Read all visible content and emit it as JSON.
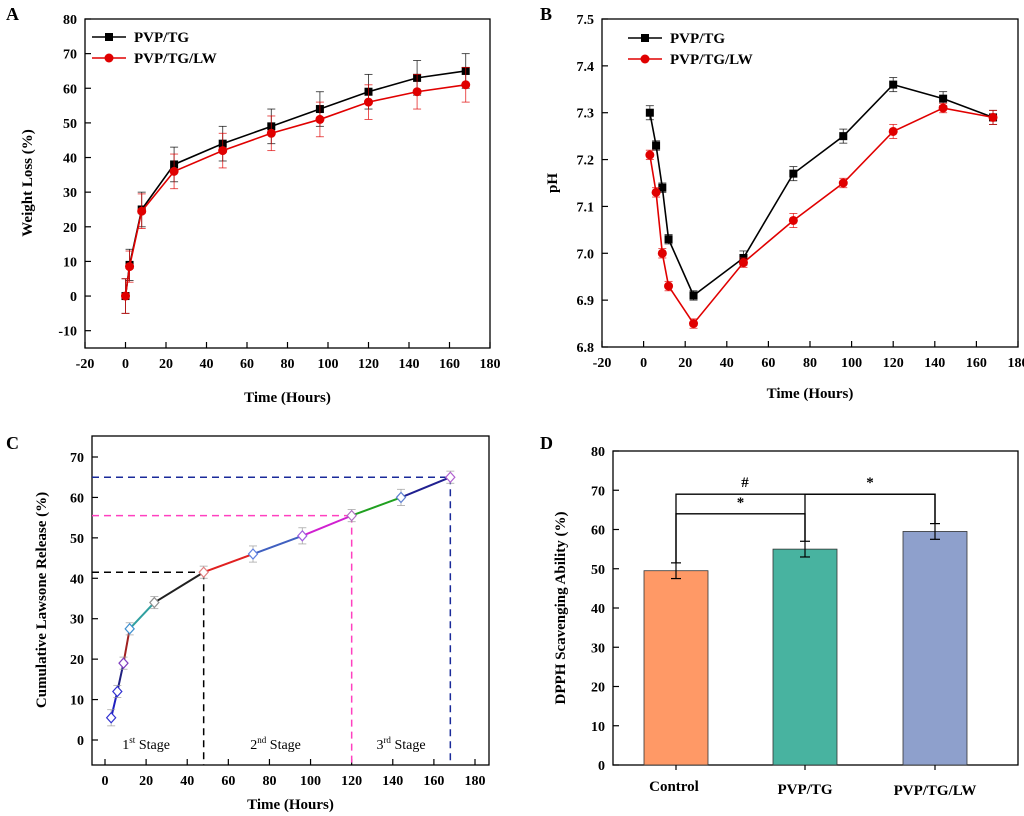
{
  "chart_data": [
    {
      "id": "A",
      "panel_label": "A",
      "type": "line",
      "xlabel": "Time (Hours)",
      "ylabel": "Weight Loss (%)",
      "xlim": [
        -20,
        180
      ],
      "ylim": [
        -15,
        80
      ],
      "xticks": [
        -20,
        0,
        20,
        40,
        60,
        80,
        100,
        120,
        140,
        160,
        180
      ],
      "yticks": [
        -10,
        0,
        10,
        20,
        30,
        40,
        50,
        60,
        70,
        80
      ],
      "legend_position": "top-left",
      "series": [
        {
          "name": "PVP/TG",
          "color": "#000000",
          "marker": "square",
          "x": [
            0,
            2,
            8,
            24,
            48,
            72,
            96,
            120,
            144,
            168
          ],
          "y": [
            0,
            9,
            25,
            38,
            44,
            49,
            54,
            59,
            63,
            65
          ],
          "err": [
            5,
            4.5,
            5,
            5,
            5,
            5,
            5,
            5,
            5,
            5
          ]
        },
        {
          "name": "PVP/TG/LW",
          "color": "#e00000",
          "marker": "circle",
          "x": [
            0,
            2,
            8,
            24,
            48,
            72,
            96,
            120,
            144,
            168
          ],
          "y": [
            0,
            8.5,
            24.5,
            36,
            42,
            47,
            51,
            56,
            59,
            61
          ],
          "err": [
            5,
            4.5,
            5,
            5,
            5,
            5,
            5,
            5,
            5,
            5
          ]
        }
      ]
    },
    {
      "id": "B",
      "panel_label": "B",
      "type": "line",
      "xlabel": "Time (Hours)",
      "ylabel": "pH",
      "xlim": [
        -20,
        180
      ],
      "ylim": [
        6.8,
        7.5
      ],
      "xticks": [
        -20,
        0,
        20,
        40,
        60,
        80,
        100,
        120,
        140,
        160,
        180
      ],
      "yticks": [
        "6.8",
        "6.9",
        "7.0",
        "7.1",
        "7.2",
        "7.3",
        "7.4",
        "7.5"
      ],
      "legend_position": "top-left",
      "series": [
        {
          "name": "PVP/TG",
          "color": "#000000",
          "marker": "square",
          "x": [
            3,
            6,
            9,
            12,
            24,
            48,
            72,
            96,
            120,
            144,
            168
          ],
          "y": [
            7.3,
            7.23,
            7.14,
            7.03,
            6.91,
            6.99,
            7.17,
            7.25,
            7.36,
            7.33,
            7.29
          ],
          "err": [
            0.015,
            0.01,
            0.01,
            0.01,
            0.01,
            0.015,
            0.015,
            0.015,
            0.015,
            0.015,
            0.015
          ]
        },
        {
          "name": "PVP/TG/LW",
          "color": "#e00000",
          "marker": "circle",
          "x": [
            3,
            6,
            9,
            12,
            24,
            48,
            72,
            96,
            120,
            144,
            168
          ],
          "y": [
            7.21,
            7.13,
            7.0,
            6.93,
            6.85,
            6.98,
            7.07,
            7.15,
            7.26,
            7.31,
            7.29
          ],
          "err": [
            0.01,
            0.01,
            0.01,
            0.01,
            0.01,
            0.01,
            0.015,
            0.01,
            0.015,
            0.01,
            0.015
          ]
        }
      ]
    },
    {
      "id": "C",
      "panel_label": "C",
      "type": "line",
      "xlabel": "Time (Hours)",
      "ylabel": "Cumulative Lawsone Release (%)",
      "xlim": [
        -5,
        185
      ],
      "ylim": [
        -5,
        72
      ],
      "xticks": [
        0,
        20,
        40,
        60,
        80,
        100,
        120,
        140,
        160,
        180
      ],
      "yticks": [
        0,
        10,
        20,
        30,
        40,
        50,
        60,
        70
      ],
      "points": {
        "x": [
          3,
          6,
          9,
          12,
          24,
          48,
          72,
          96,
          120,
          144,
          168
        ],
        "y": [
          5.5,
          12,
          19,
          27.5,
          34,
          41.5,
          46,
          50.5,
          55.5,
          60,
          65
        ],
        "err": [
          2,
          1.5,
          1.5,
          1.5,
          1.5,
          1.5,
          2,
          2,
          1.5,
          2,
          1.5
        ]
      },
      "segment_colors": [
        "#2020c0",
        "#202080",
        "#a02020",
        "#30a0a0",
        "#202020",
        "#e02020",
        "#4060c0",
        "#d020d0",
        "#20a020",
        "#202090"
      ],
      "guides": [
        {
          "x": 48,
          "y": 41.5,
          "color": "#000000"
        },
        {
          "x": 120,
          "y": 55.5,
          "color": "#ff40c0"
        },
        {
          "x": 168,
          "y": 65,
          "color": "#1a2a9a"
        }
      ],
      "stages": [
        {
          "number": "1",
          "sup": "st",
          "label": " Stage",
          "x": 20
        },
        {
          "number": "2",
          "sup": "nd",
          "label": " Stage",
          "x": 83
        },
        {
          "number": "3",
          "sup": "rd",
          "label": " Stage",
          "x": 144
        }
      ]
    },
    {
      "id": "D",
      "panel_label": "D",
      "type": "bar",
      "xlabel": "",
      "ylabel": "DPPH Scavenging Ability (%)",
      "ylim": [
        0,
        80
      ],
      "yticks": [
        0,
        10,
        20,
        30,
        40,
        50,
        60,
        70,
        80
      ],
      "categories": [
        "Control",
        "PVP/TG",
        "PVP/TG/LW"
      ],
      "values": [
        49.5,
        55,
        59.5
      ],
      "err": [
        2,
        2,
        2
      ],
      "colors": [
        "#ff9966",
        "#48b3a0",
        "#8ea0cc"
      ],
      "significance": [
        {
          "from": 0,
          "to": 1,
          "symbol": "*",
          "level": 64
        },
        {
          "from": 0,
          "to": 2,
          "symbol": "#",
          "level": 69
        },
        {
          "from": 1,
          "to": 2,
          "symbol": "*",
          "level": 69
        }
      ]
    }
  ]
}
